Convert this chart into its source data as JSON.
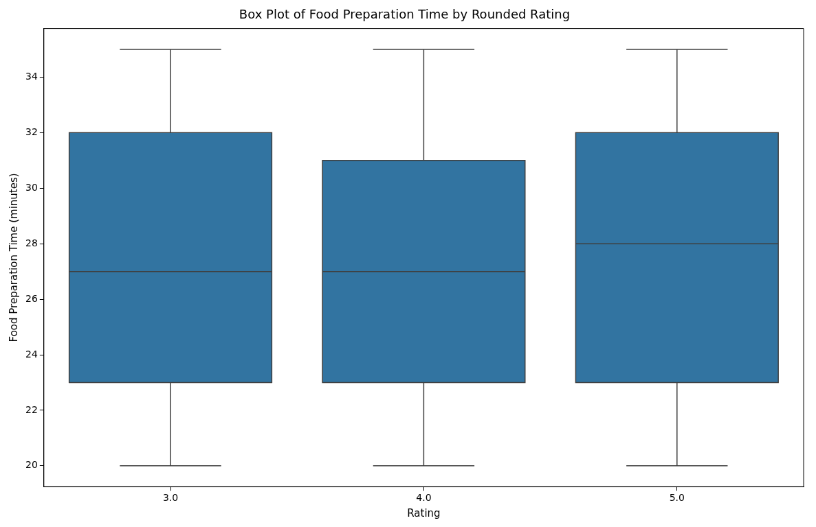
{
  "chart_data": {
    "type": "box",
    "title": "Box Plot of Food Preparation Time by Rounded Rating",
    "xlabel": "Rating",
    "ylabel": "Food Preparation Time (minutes)",
    "categories": [
      "3.0",
      "4.0",
      "5.0"
    ],
    "color": "#3274a1",
    "ylim": [
      19.25,
      35.75
    ],
    "yticks": [
      20,
      22,
      24,
      26,
      28,
      30,
      32,
      34
    ],
    "grid": false,
    "legend": false,
    "boxes": [
      {
        "low": 20,
        "q1": 23,
        "median": 27,
        "q3": 32,
        "high": 35
      },
      {
        "low": 20,
        "q1": 23,
        "median": 27,
        "q3": 31,
        "high": 35
      },
      {
        "low": 20,
        "q1": 23,
        "median": 28,
        "q3": 32,
        "high": 35
      }
    ]
  }
}
